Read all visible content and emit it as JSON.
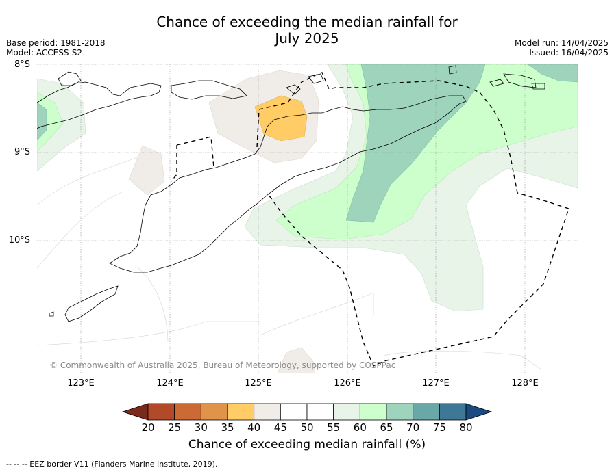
{
  "title_line1": "Chance of exceeding the median rainfall for",
  "title_line2": "July 2025",
  "base_period": "Base period: 1981-2018",
  "model": "Model: ACCESS-S2",
  "model_run": "Model run: 14/04/2025",
  "issued": "Issued: 16/04/2025",
  "lat_labels": [
    "8°S",
    "9°S",
    "10°S"
  ],
  "lon_labels": [
    "123°E",
    "124°E",
    "125°E",
    "126°E",
    "127°E",
    "128°E"
  ],
  "copyright": "© Commonwealth of Australia 2025, Bureau of Meteorology, supported by COSPPac",
  "colorbar": {
    "ticks": [
      "20",
      "25",
      "30",
      "35",
      "40",
      "45",
      "50",
      "55",
      "60",
      "65",
      "70",
      "75",
      "80"
    ],
    "colors": [
      "#7a2a1a",
      "#b24a2a",
      "#cc6a36",
      "#e0944a",
      "#ffcc66",
      "#f0ece8",
      "#ffffff",
      "#ffffff",
      "#e8f4e8",
      "#ccffcc",
      "#9ed4bc",
      "#6aa8a8",
      "#3e7896",
      "#1a4a80"
    ],
    "label": "Chance of exceeding median rainfall (%)"
  },
  "legend_footer": "--  --  -- EEZ border V11 (Flanders Marine Institute, 2019)."
}
